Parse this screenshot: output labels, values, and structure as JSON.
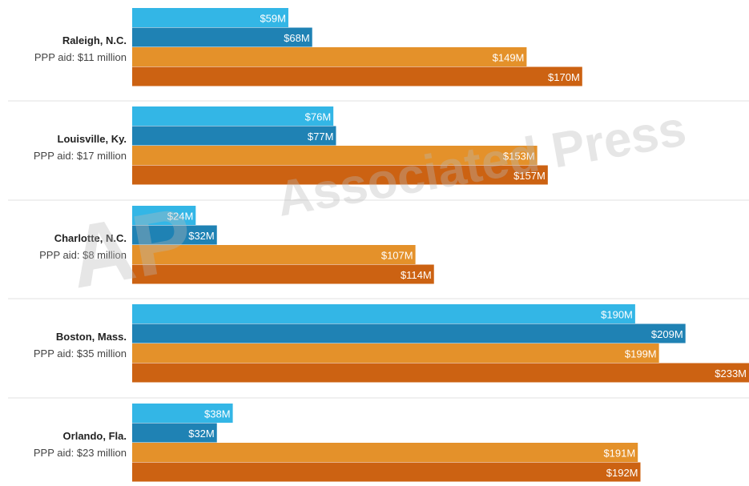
{
  "chart_data": {
    "type": "bar",
    "orientation": "horizontal",
    "xlim": [
      0,
      233
    ],
    "grid": false,
    "colors": [
      "#33b6e6",
      "#1f82b4",
      "#e4912a",
      "#cc6212"
    ],
    "categories": [
      {
        "name": "Raleigh, N.C.",
        "aid": "PPP aid: $11 million",
        "values": [
          59,
          68,
          149,
          170
        ],
        "labels": [
          "$59M",
          "$68M",
          "$149M",
          "$170M"
        ]
      },
      {
        "name": "Louisville, Ky.",
        "aid": "PPP aid: $17 million",
        "values": [
          76,
          77,
          153,
          157
        ],
        "labels": [
          "$76M",
          "$77M",
          "$153M",
          "$157M"
        ]
      },
      {
        "name": "Charlotte, N.C.",
        "aid": "PPP aid: $8 million",
        "values": [
          24,
          32,
          107,
          114
        ],
        "labels": [
          "$24M",
          "$32M",
          "$107M",
          "$114M"
        ]
      },
      {
        "name": "Boston, Mass.",
        "aid": "PPP aid: $35 million",
        "values": [
          190,
          209,
          199,
          233
        ],
        "labels": [
          "$190M",
          "$209M",
          "$199M",
          "$233M"
        ]
      },
      {
        "name": "Orlando, Fla.",
        "aid": "PPP aid: $23 million",
        "values": [
          38,
          32,
          191,
          192
        ],
        "labels": [
          "$38M",
          "$32M",
          "$191M",
          "$192M"
        ]
      }
    ]
  },
  "watermark": {
    "logo": "AP",
    "text": "Associated Press"
  }
}
